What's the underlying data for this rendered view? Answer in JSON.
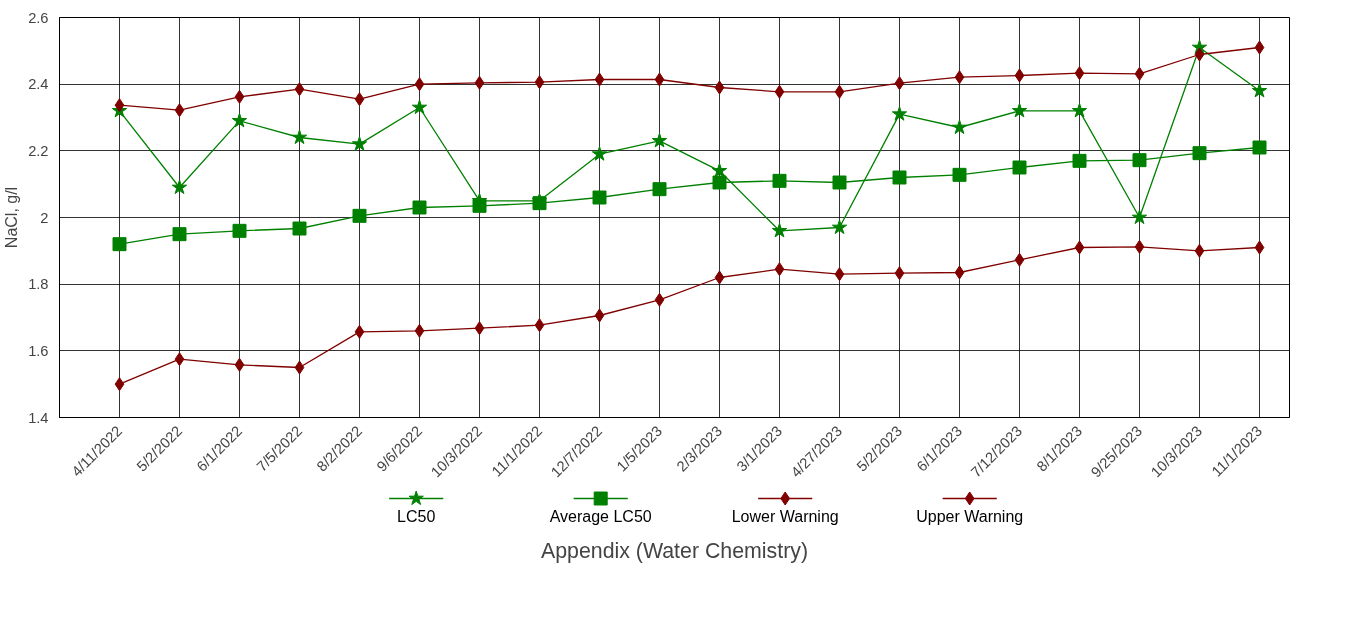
{
  "chart_data": {
    "type": "line",
    "xlabel": "Appendix (Water Chemistry)",
    "ylabel": "NaCl, g/l",
    "categories": [
      "4/11/2022",
      "5/2/2022",
      "6/1/2022",
      "7/5/2022",
      "8/2/2022",
      "9/6/2022",
      "10/3/2022",
      "11/1/2022",
      "12/7/2022",
      "1/5/2023",
      "2/3/2023",
      "3/1/2023",
      "4/27/2023",
      "5/2/2023",
      "6/1/2023",
      "7/12/2023",
      "8/1/2023",
      "9/25/2023",
      "10/3/2023",
      "11/1/2023"
    ],
    "series": [
      {
        "name": "LC50",
        "color": "#008000",
        "marker": "star",
        "values": [
          2.32,
          2.09,
          2.29,
          2.24,
          2.22,
          2.33,
          2.05,
          2.05,
          2.19,
          2.23,
          2.14,
          1.96,
          1.97,
          2.31,
          2.27,
          2.32,
          2.32,
          2.0,
          2.51,
          2.38
        ]
      },
      {
        "name": "Average LC50",
        "color": "#008000",
        "marker": "square",
        "values": [
          1.92,
          1.95,
          1.96,
          1.967,
          2.005,
          2.03,
          2.035,
          2.043,
          2.06,
          2.085,
          2.105,
          2.11,
          2.105,
          2.12,
          2.128,
          2.15,
          2.17,
          2.172,
          2.193,
          2.21
        ]
      },
      {
        "name": "Lower Warning",
        "color": "#800000",
        "marker": "diamond",
        "values": [
          1.5,
          1.575,
          1.558,
          1.55,
          1.657,
          1.66,
          1.668,
          1.677,
          1.706,
          1.753,
          1.82,
          1.845,
          1.83,
          1.833,
          1.835,
          1.873,
          1.91,
          1.912,
          1.9,
          1.91
        ]
      },
      {
        "name": "Upper Warning",
        "color": "#800000",
        "marker": "diamond",
        "values": [
          2.337,
          2.322,
          2.362,
          2.385,
          2.355,
          2.4,
          2.404,
          2.406,
          2.414,
          2.414,
          2.39,
          2.377,
          2.377,
          2.403,
          2.421,
          2.426,
          2.433,
          2.431,
          2.489,
          2.51
        ]
      }
    ],
    "ylim": [
      1.4,
      2.6
    ],
    "yticks": [
      1.4,
      1.6,
      1.8,
      {
        "value": 2.0,
        "label": "2"
      },
      2.2,
      2.4,
      2.6
    ],
    "grid": true,
    "legend": "bottom"
  }
}
